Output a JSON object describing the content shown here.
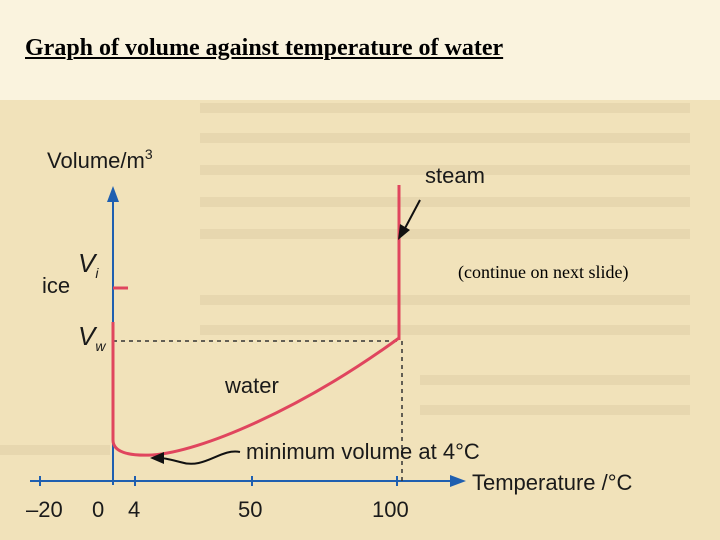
{
  "slide": {
    "title": "Graph of volume against temperature of water",
    "note": "(continue on next slide)"
  },
  "diagram": {
    "y_axis_label": "Volume/m",
    "y_axis_label_sup": "3",
    "x_axis_label": "Temperature /°C",
    "ticks": [
      "–20",
      "0",
      "4",
      "50",
      "100"
    ],
    "levels": {
      "vi_main": "V",
      "vi_sub": "i",
      "vw_main": "V",
      "vw_sub": "w"
    },
    "labels": {
      "ice": "ice",
      "steam": "steam",
      "water": "water",
      "minimum": "minimum volume at 4°C"
    },
    "colors": {
      "curve": "#e0455e",
      "axis": "#1f5fb0",
      "text": "#1a1a1a",
      "dashed": "#333333"
    }
  }
}
